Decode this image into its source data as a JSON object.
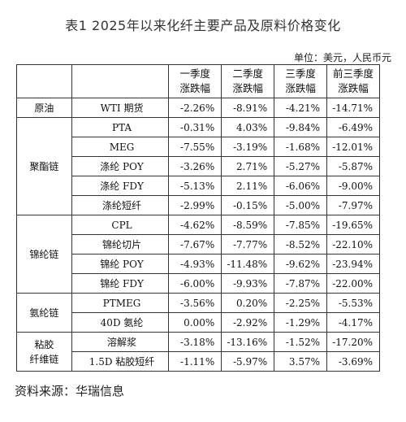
{
  "title": "表1  2025年以来化纤主要产品及原料价格变化",
  "unit_note": "单位：美元，人民币元",
  "headers": {
    "q1": [
      "一季度",
      "涨跌幅"
    ],
    "q2": [
      "二季度",
      "涨跌幅"
    ],
    "q3": [
      "三季度",
      "涨跌幅"
    ],
    "q1_3": [
      "前三季度",
      "涨跌幅"
    ]
  },
  "groups": [
    {
      "name": [
        "原油"
      ],
      "rows": [
        {
          "product": "WTI 期货",
          "q1": "-2.26%",
          "q2": "-8.91%",
          "q3": "-4.21%",
          "q1_3": "-14.71%"
        }
      ]
    },
    {
      "name": [
        "聚酯链"
      ],
      "rows": [
        {
          "product": "PTA",
          "q1": "-0.31%",
          "q2": "4.03%",
          "q3": "-9.84%",
          "q1_3": "-6.49%"
        },
        {
          "product": "MEG",
          "q1": "-7.55%",
          "q2": "-3.19%",
          "q3": "-1.68%",
          "q1_3": "-12.01%"
        },
        {
          "product": "涤纶 POY",
          "q1": "-3.26%",
          "q2": "2.71%",
          "q3": "-5.27%",
          "q1_3": "-5.87%"
        },
        {
          "product": "涤纶 FDY",
          "q1": "-5.13%",
          "q2": "2.11%",
          "q3": "-6.06%",
          "q1_3": "-9.00%"
        },
        {
          "product": "涤纶短纤",
          "q1": "-2.99%",
          "q2": "-0.15%",
          "q3": "-5.00%",
          "q1_3": "-7.97%"
        }
      ]
    },
    {
      "name": [
        "锦纶链"
      ],
      "rows": [
        {
          "product": "CPL",
          "q1": "-4.62%",
          "q2": "-8.59%",
          "q3": "-7.85%",
          "q1_3": "-19.65%"
        },
        {
          "product": "锦纶切片",
          "q1": "-7.67%",
          "q2": "-7.77%",
          "q3": "-8.52%",
          "q1_3": "-22.10%"
        },
        {
          "product": "锦纶 POY",
          "q1": "-4.93%",
          "q2": "-11.48%",
          "q3": "-9.62%",
          "q1_3": "-23.94%"
        },
        {
          "product": "锦纶 FDY",
          "q1": "-6.00%",
          "q2": "-9.93%",
          "q3": "-7.87%",
          "q1_3": "-22.00%"
        }
      ]
    },
    {
      "name": [
        "氨纶链"
      ],
      "rows": [
        {
          "product": "PTMEG",
          "q1": "-3.56%",
          "q2": "0.20%",
          "q3": "-2.25%",
          "q1_3": "-5.53%"
        },
        {
          "product": "40D 氨纶",
          "q1": "0.00%",
          "q2": "-2.92%",
          "q3": "-1.29%",
          "q1_3": "-4.17%"
        }
      ]
    },
    {
      "name": [
        "粘胶",
        "纤维链"
      ],
      "rows": [
        {
          "product": "溶解浆",
          "q1": "-3.18%",
          "q2": "-13.16%",
          "q3": "-1.52%",
          "q1_3": "-17.20%"
        },
        {
          "product": "1.5D 粘胶短纤",
          "q1": "-1.11%",
          "q2": "-5.97%",
          "q3": "3.57%",
          "q1_3": "-3.69%"
        }
      ]
    }
  ],
  "source": "资料来源：华瑞信息"
}
